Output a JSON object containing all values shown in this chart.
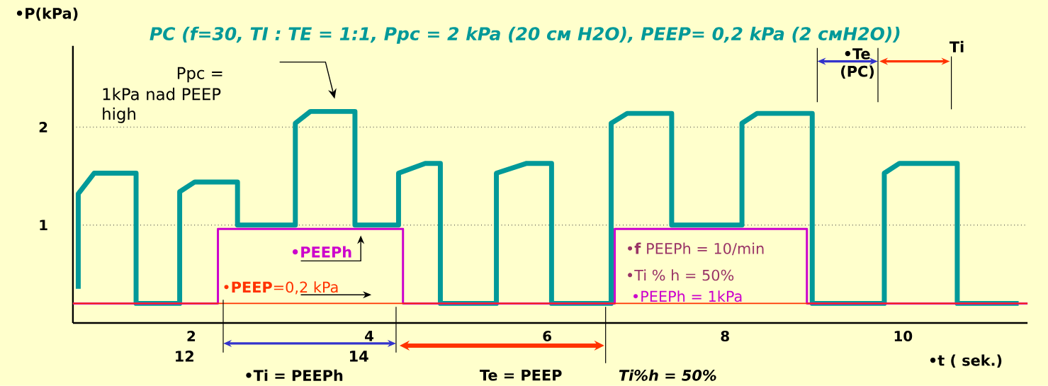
{
  "chart_data": {
    "type": "line",
    "title": "PC (f=30, TI : TE = 1:1, Ppc = 2 kPa (20 см H2O), PEEP= 0,2 kPa (2 смH2O))",
    "xlabel": "•t ( sek.)",
    "ylabel": "•P(kPa)",
    "xlim": [
      0.67,
      11.4
    ],
    "ylim": [
      0,
      2.83
    ],
    "xticks": [
      2,
      4,
      6,
      8,
      10
    ],
    "yticks": [
      1,
      2
    ],
    "grid": "y",
    "series": [
      {
        "x": [
          0.73,
          0.73,
          0.91,
          1.38,
          1.38,
          1.87,
          1.87,
          2.04,
          2.52,
          2.52,
          3.17,
          3.17,
          3.34,
          3.84,
          3.84,
          4.33,
          4.33,
          4.63,
          4.8,
          4.8,
          5.43,
          5.43,
          5.77,
          6.05,
          6.05,
          6.72,
          6.72,
          6.9,
          7.4,
          7.4,
          8.19,
          8.19,
          8.36,
          8.98,
          8.98,
          9.79,
          9.79,
          9.96,
          10.61,
          10.61,
          11.3
        ],
        "values": [
          0.35,
          1.32,
          1.53,
          1.53,
          0.2,
          0.2,
          1.34,
          1.44,
          1.44,
          1.0,
          1.0,
          2.04,
          2.16,
          2.16,
          1.0,
          1.0,
          1.53,
          1.63,
          1.63,
          0.2,
          0.2,
          1.53,
          1.63,
          1.63,
          0.2,
          0.2,
          2.04,
          2.14,
          2.14,
          1.0,
          1.0,
          2.04,
          2.14,
          2.14,
          0.2,
          0.2,
          1.53,
          1.63,
          1.63,
          0.2,
          0.2
        ],
        "color": "#009999"
      },
      {
        "name": "•PEEPh",
        "x": [
          0.67,
          2.3,
          2.3,
          4.38,
          4.38,
          6.76,
          6.76,
          8.92,
          8.92,
          11.4
        ],
        "values": [
          0.2,
          0.2,
          0.96,
          0.96,
          0.2,
          0.2,
          0.96,
          0.96,
          0.2,
          0.2
        ],
        "color": "#cc00cc"
      }
    ],
    "ref_lines": [
      {
        "axis": "y",
        "value": 0.2,
        "label": "•**PEEP**=0,2 kPa",
        "color": "#ff3300"
      }
    ],
    "annotations": [
      "Ppc =",
      "1kPa nad PEEP high",
      "•**f** PEEPh = 10/min",
      "•Ti % h = 50%",
      "•PEEPh = 1kPa",
      "•Te (PC)",
      "Ti",
      "12",
      "14",
      "•Ti = PEEPh",
      "Te = PEEP",
      "Ti%h = 50%"
    ]
  }
}
